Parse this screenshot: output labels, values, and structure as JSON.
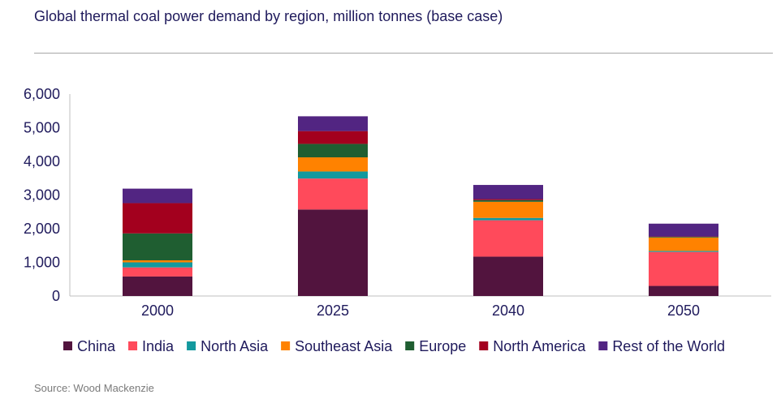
{
  "chart_data": {
    "type": "bar",
    "stacked": true,
    "title": "Global thermal coal power demand by region, million tonnes (base case)",
    "xlabel": "",
    "ylabel": "",
    "ylim": [
      0,
      6000
    ],
    "yticks": [
      0,
      1000,
      2000,
      3000,
      4000,
      5000,
      6000
    ],
    "ytick_labels": [
      "0",
      "1,000",
      "2,000",
      "3,000",
      "4,000",
      "5,000",
      "6,000"
    ],
    "categories": [
      "2000",
      "2025",
      "2040",
      "2050"
    ],
    "legend_position": "bottom",
    "series": [
      {
        "name": "China",
        "color": "#52143e",
        "values": [
          580,
          2570,
          1170,
          300
        ]
      },
      {
        "name": "India",
        "color": "#ff4a5b",
        "values": [
          270,
          920,
          1080,
          1010
        ]
      },
      {
        "name": "North Asia",
        "color": "#13999e",
        "values": [
          150,
          210,
          70,
          30
        ]
      },
      {
        "name": "Southeast Asia",
        "color": "#ff8200",
        "values": [
          60,
          420,
          480,
          400
        ]
      },
      {
        "name": "Europe",
        "color": "#1f5e31",
        "values": [
          800,
          400,
          50,
          20
        ]
      },
      {
        "name": "North America",
        "color": "#a3001e",
        "values": [
          900,
          380,
          30,
          10
        ]
      },
      {
        "name": "Rest of the World",
        "color": "#522582",
        "values": [
          430,
          440,
          420,
          380
        ]
      }
    ]
  },
  "source": "Source: Wood Mackenzie"
}
